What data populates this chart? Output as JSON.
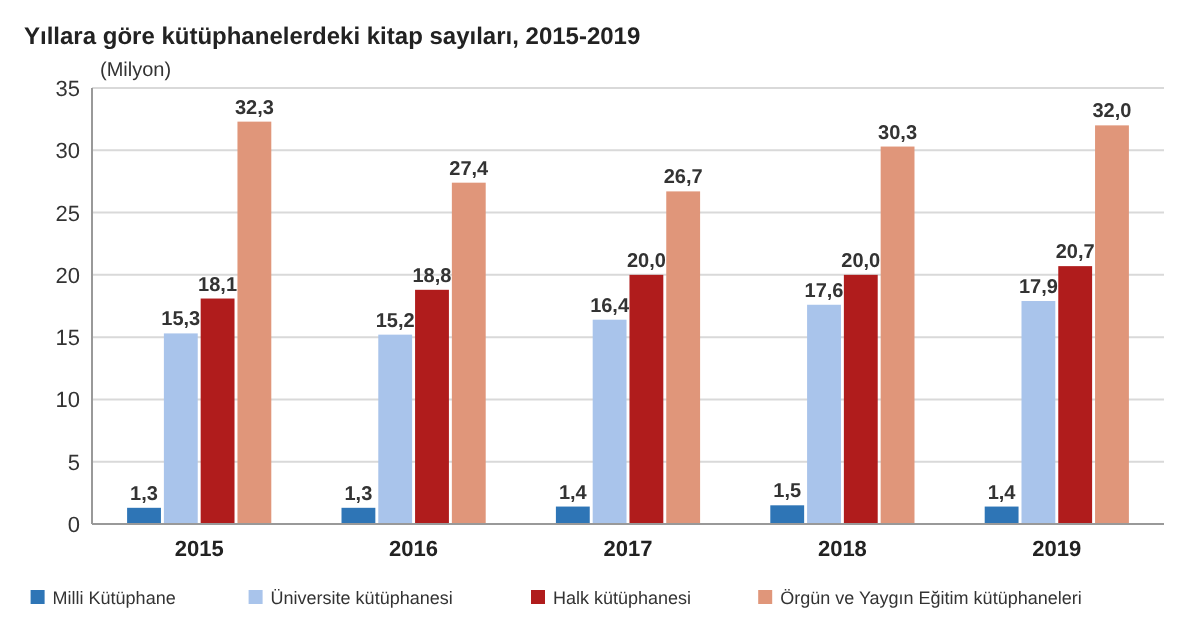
{
  "chart_data": {
    "type": "bar",
    "title": "Yıllara göre kütüphanelerdeki kitap sayıları, 2015-2019",
    "ylabel": "(Milyon)",
    "categories": [
      "2015",
      "2016",
      "2017",
      "2018",
      "2019"
    ],
    "series": [
      {
        "name": "Milli Kütüphane",
        "color": "#2e75b6",
        "values": [
          1.3,
          1.3,
          1.4,
          1.5,
          1.4
        ],
        "value_labels": [
          "1,3",
          "1,3",
          "1,4",
          "1,5",
          "1,4"
        ]
      },
      {
        "name": "Üniversite kütüphanesi",
        "color": "#a9c4eb",
        "values": [
          15.3,
          15.2,
          16.4,
          17.6,
          17.9
        ],
        "value_labels": [
          "15,3",
          "15,2",
          "16,4",
          "17,6",
          "17,9"
        ]
      },
      {
        "name": "Halk kütüphanesi",
        "color": "#b01c1c",
        "values": [
          18.1,
          18.8,
          20.0,
          20.0,
          20.7
        ],
        "value_labels": [
          "18,1",
          "18,8",
          "20,0",
          "20,0",
          "20,7"
        ]
      },
      {
        "name": "Örgün ve Yaygın Eğitim kütüphaneleri",
        "color": "#e0967a",
        "values": [
          32.3,
          27.4,
          26.7,
          30.3,
          32.0
        ],
        "value_labels": [
          "32,3",
          "27,4",
          "26,7",
          "30,3",
          "32,0"
        ]
      }
    ],
    "ylim": [
      0,
      35
    ],
    "yticks": [
      0,
      5,
      10,
      15,
      20,
      25,
      30,
      35
    ],
    "grid": "y",
    "legend": "bottom"
  }
}
